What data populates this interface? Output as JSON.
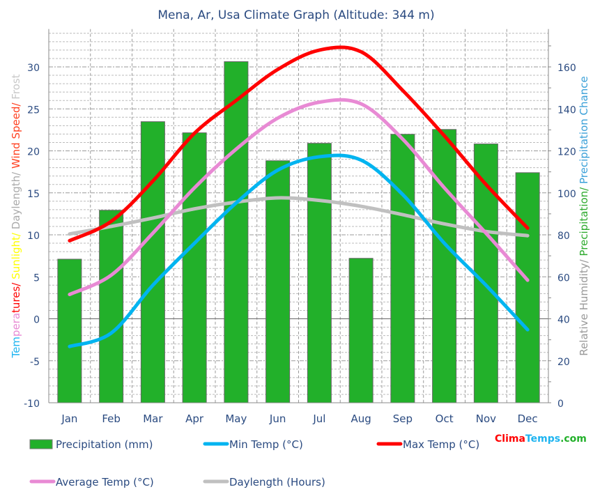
{
  "chart_data": {
    "type": "bar+line",
    "title": "Mena, Ar, Usa Climate Graph (Altitude: 344 m)",
    "categories": [
      "Jan",
      "Feb",
      "Mar",
      "Apr",
      "May",
      "Jun",
      "Jul",
      "Aug",
      "Sep",
      "Oct",
      "Nov",
      "Dec"
    ],
    "left_axis": {
      "label_parts": [
        {
          "text": "Tem",
          "color": "#1eb4f0"
        },
        {
          "text": "pera",
          "color": "#e88ad4"
        },
        {
          "text": "tures/",
          "color": "#ff0000"
        },
        {
          "text": " Sunlight/",
          "color": "#ffff00"
        },
        {
          "text": " Daylength/",
          "color": "#aaaaaa"
        },
        {
          "text": " Wind Speed/",
          "color": "#ff4020"
        },
        {
          "text": " Frost",
          "color": "#c8c8c8"
        }
      ],
      "ylim": [
        -10,
        34.5
      ],
      "ticks": [
        -10,
        -5,
        0,
        5,
        10,
        15,
        20,
        25,
        30
      ]
    },
    "right_axis": {
      "label_parts": [
        {
          "text": "Relative Humidity/",
          "color": "#999999"
        },
        {
          "text": " Precipitation/",
          "color": "#2eaa2e"
        },
        {
          "text": " Precipitation Chance",
          "color": "#3aa0d8"
        }
      ],
      "ylim": [
        0,
        178
      ],
      "ticks": [
        0,
        20,
        40,
        60,
        80,
        100,
        120,
        140,
        160
      ]
    },
    "grid": true,
    "series": [
      {
        "name": "Precipitation (mm)",
        "type": "bar",
        "axis": "right",
        "color": "#22b02a",
        "values": [
          68.4,
          91.7,
          133.9,
          128.6,
          162.5,
          115.3,
          123.6,
          68.8,
          127.9,
          130.2,
          123.3,
          109.6
        ]
      },
      {
        "name": "Min Temp (°C)",
        "type": "line",
        "axis": "left",
        "color": "#00b4f0",
        "values": [
          -3.3,
          -1.7,
          4.0,
          9.0,
          13.8,
          17.7,
          19.3,
          18.9,
          14.8,
          9.0,
          4.0,
          -1.3
        ]
      },
      {
        "name": "Max Temp (°C)",
        "type": "line",
        "axis": "left",
        "color": "#ff0000",
        "values": [
          9.3,
          11.6,
          16.4,
          22.1,
          26.0,
          29.7,
          32.0,
          31.8,
          27.2,
          21.8,
          16.0,
          10.8
        ]
      },
      {
        "name": "Average Temp (°C)",
        "type": "line",
        "axis": "left",
        "color": "#e88ad4",
        "values": [
          2.9,
          5.2,
          10.2,
          15.6,
          20.2,
          23.9,
          25.8,
          25.6,
          21.4,
          15.6,
          10.2,
          4.6
        ]
      },
      {
        "name": "Daylength (Hours)",
        "type": "line",
        "axis": "left",
        "color": "#c0c0c0",
        "values": [
          10.1,
          11.0,
          12.0,
          13.1,
          13.9,
          14.4,
          14.1,
          13.4,
          12.4,
          11.3,
          10.4,
          9.9
        ]
      }
    ],
    "legend_placement": "bottom"
  },
  "branding": {
    "parts": [
      {
        "text": "Clima",
        "color": "#ff0000"
      },
      {
        "text": "Temps",
        "color": "#1eb4f0"
      },
      {
        "text": ".com",
        "color": "#22b02a"
      }
    ]
  }
}
